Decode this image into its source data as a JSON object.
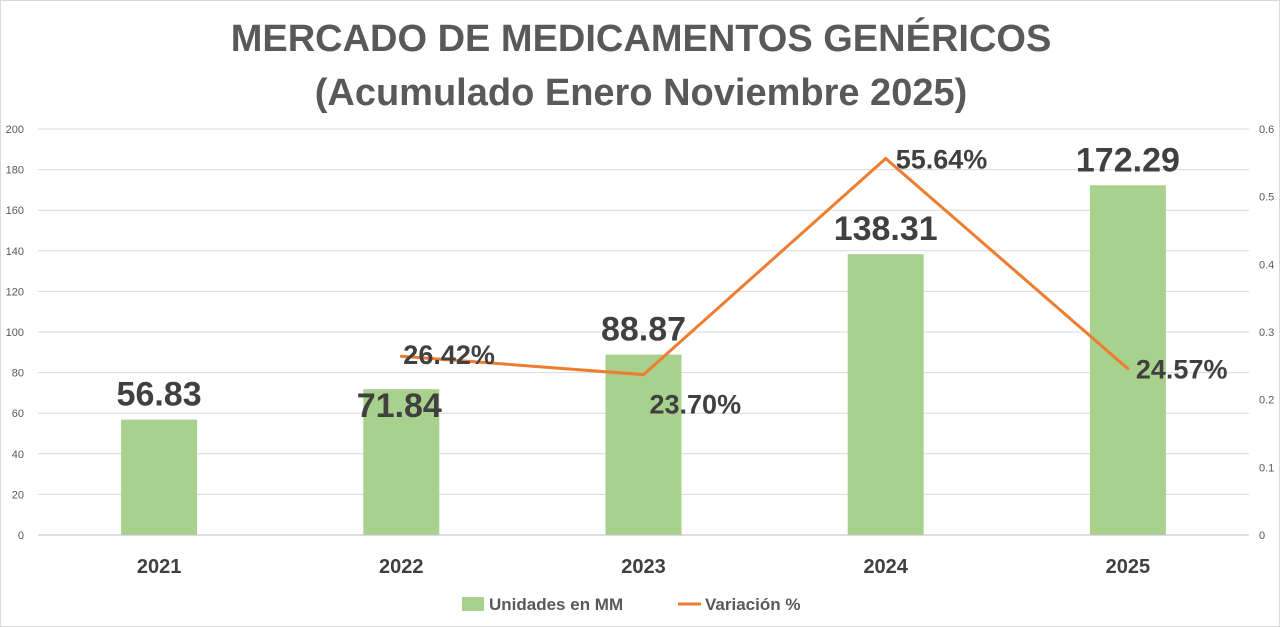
{
  "chart_data": {
    "type": "bar",
    "title": "MERCADO DE MEDICAMENTOS GENÉRICOS",
    "subtitle": "(Acumulado Enero Noviembre 2025)",
    "categories": [
      "2021",
      "2022",
      "2023",
      "2024",
      "2025"
    ],
    "series": [
      {
        "name": "Unidades en MM",
        "type": "bar",
        "axis": "left",
        "color": "#a9d18e",
        "values": [
          56.83,
          71.84,
          88.87,
          138.31,
          172.29
        ],
        "data_labels": [
          "56.83",
          "71.84",
          "88.87",
          "138.31",
          "172.29"
        ]
      },
      {
        "name": "Variación %",
        "type": "line",
        "axis": "right",
        "color": "#ed7d31",
        "values": [
          null,
          0.2642,
          0.237,
          0.5564,
          0.2457
        ],
        "data_labels": [
          "",
          "26.42%",
          "23.70%",
          "55.64%",
          "24.57%"
        ]
      }
    ],
    "y_left": {
      "min": 0,
      "max": 200,
      "step": 20,
      "ticks": [
        "0",
        "20",
        "40",
        "60",
        "80",
        "100",
        "120",
        "140",
        "160",
        "180",
        "200"
      ]
    },
    "y_right": {
      "min": 0,
      "max": 0.6,
      "step": 0.1,
      "ticks": [
        "0",
        "0.1",
        "0.2",
        "0.3",
        "0.4",
        "0.5",
        "0.6"
      ]
    },
    "grid": true,
    "legend_position": "bottom"
  }
}
